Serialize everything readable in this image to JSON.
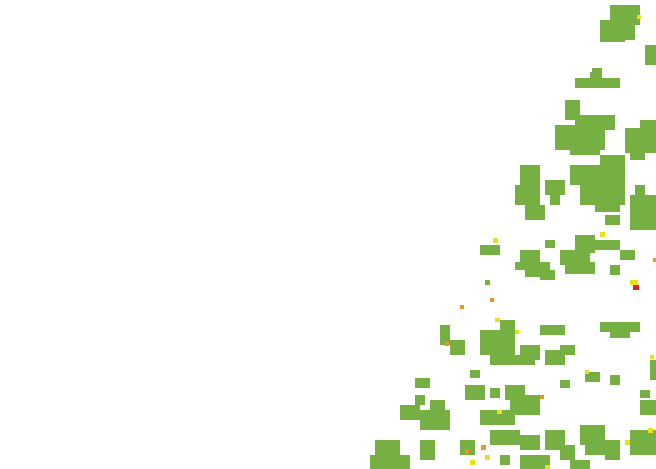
{
  "map": {
    "background_color": "#ffffff",
    "classes": [
      {
        "id": "green",
        "color": "#76b043"
      },
      {
        "id": "yellow",
        "color": "#e6e01e"
      },
      {
        "id": "orange",
        "color": "#f0922a"
      },
      {
        "id": "red",
        "color": "#d8262b"
      }
    ]
  }
}
